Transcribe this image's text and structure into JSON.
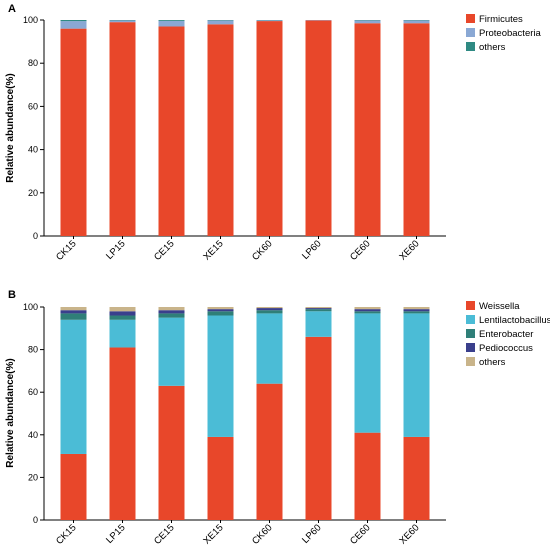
{
  "chart_data": [
    {
      "type": "bar",
      "panel": "A",
      "stacked": true,
      "ylabel": "Relative abundance(%)",
      "ylim": [
        0,
        100
      ],
      "yticks": [
        0,
        20,
        40,
        60,
        80,
        100
      ],
      "categories": [
        "CK15",
        "LP15",
        "CE15",
        "XE15",
        "CK60",
        "LP60",
        "CE60",
        "XE60"
      ],
      "series": [
        {
          "name": "Firmicutes",
          "color": "#e8472a",
          "values": [
            96,
            99,
            97,
            98,
            99.5,
            99.8,
            98.5,
            98.5
          ]
        },
        {
          "name": "Proteobacteria",
          "color": "#8aa8d4",
          "values": [
            3.5,
            0.8,
            2.6,
            1.8,
            0.4,
            0.2,
            1.3,
            1.3
          ]
        },
        {
          "name": "others",
          "color": "#2f8a83",
          "values": [
            0.5,
            0.2,
            0.4,
            0.2,
            0.1,
            0.0,
            0.2,
            0.2
          ]
        }
      ],
      "legend": "top-right"
    },
    {
      "type": "bar",
      "panel": "B",
      "stacked": true,
      "ylabel": "Relative abundance(%)",
      "ylim": [
        0,
        100
      ],
      "yticks": [
        0,
        20,
        40,
        60,
        80,
        100
      ],
      "categories": [
        "CK15",
        "LP15",
        "CE15",
        "XE15",
        "CK60",
        "LP60",
        "CE60",
        "XE60"
      ],
      "series": [
        {
          "name": "Weissella",
          "color": "#e8472a",
          "values": [
            31,
            81,
            63,
            39,
            64,
            86,
            41,
            39
          ]
        },
        {
          "name": "Lentilactobacillus",
          "color": "#4bbcd6",
          "values": [
            63,
            13,
            32,
            57,
            33,
            12,
            56,
            58
          ]
        },
        {
          "name": "Enterobacter",
          "color": "#2f7f78",
          "values": [
            3,
            2,
            2,
            2,
            1.5,
            1,
            1,
            1
          ]
        },
        {
          "name": "Pediococcus",
          "color": "#3a3f8c",
          "values": [
            1.5,
            2,
            1.5,
            1,
            1,
            0.5,
            1,
            1
          ]
        },
        {
          "name": "others",
          "color": "#c9b48a",
          "values": [
            1.5,
            2,
            1.5,
            1,
            0.5,
            0.5,
            1,
            1
          ]
        }
      ],
      "legend": "top-right"
    }
  ]
}
